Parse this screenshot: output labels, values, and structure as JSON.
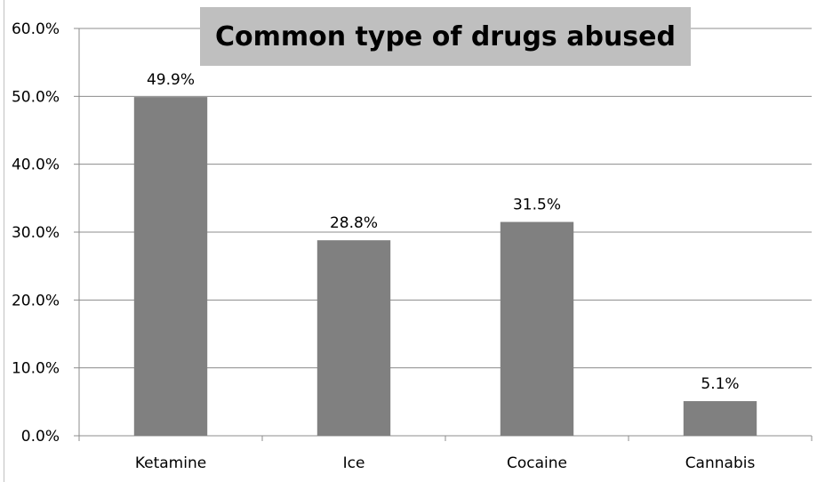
{
  "chart_data": {
    "type": "bar",
    "title": "Common type of drugs abused",
    "categories": [
      "Ketamine",
      "Ice",
      "Cocaine",
      "Cannabis"
    ],
    "values": [
      49.9,
      28.8,
      31.5,
      5.1
    ],
    "data_labels": [
      "49.9%",
      "28.8%",
      "31.5%",
      "5.1%"
    ],
    "y_ticks": [
      "0.0%",
      "10.0%",
      "20.0%",
      "30.0%",
      "40.0%",
      "50.0%",
      "60.0%"
    ],
    "ylim": [
      0,
      60
    ],
    "xlabel": "",
    "ylabel": "",
    "grid": true,
    "legend": "none",
    "bar_color": "#808080",
    "title_background": "#bfbfbf"
  }
}
